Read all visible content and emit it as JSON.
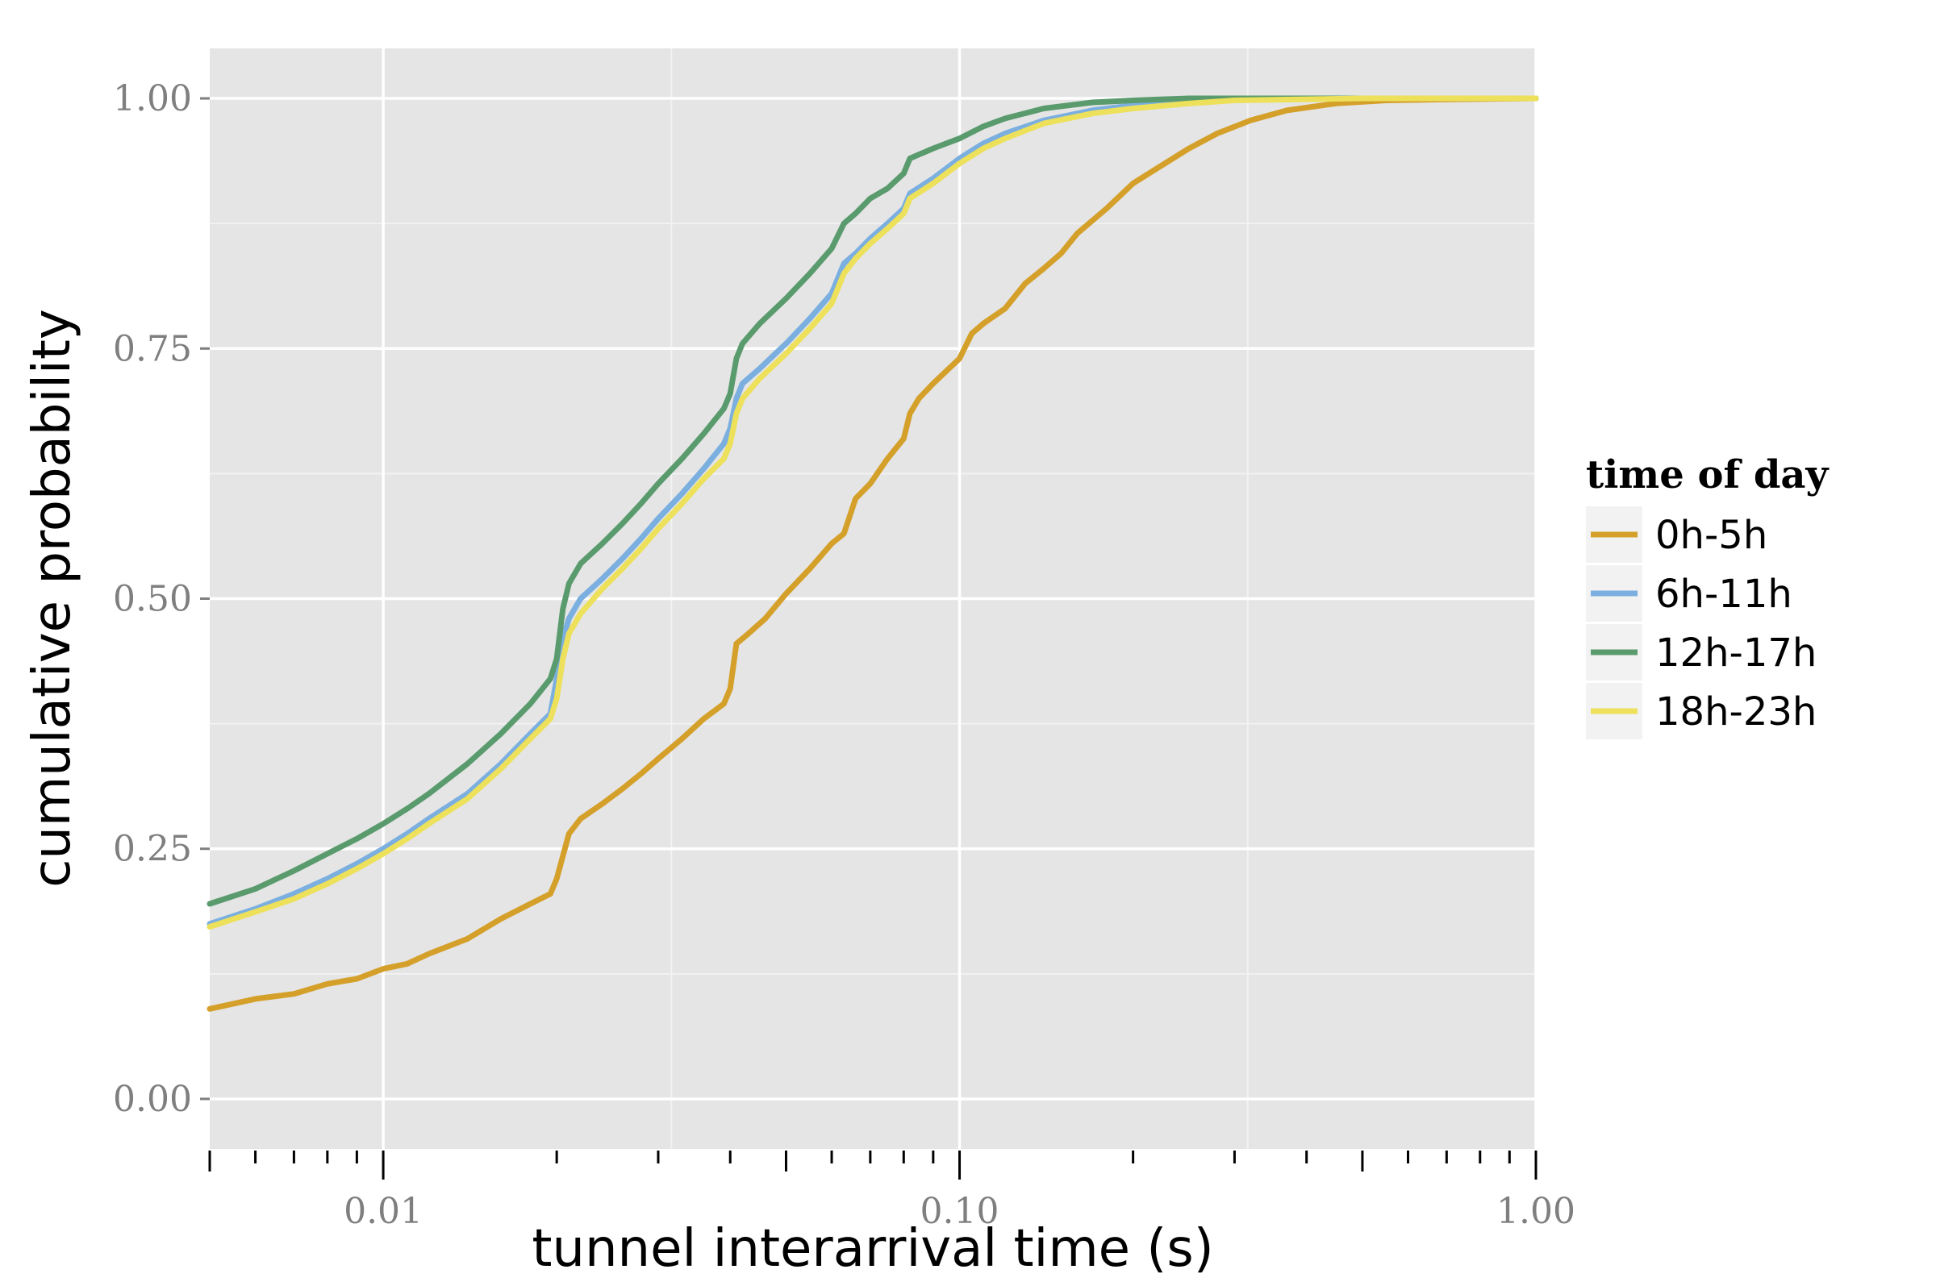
{
  "chart_data": {
    "type": "line",
    "xlabel": "tunnel interarrival time (s)",
    "ylabel": "cumulative probability",
    "xscale": "log10",
    "xlim": [
      0.005,
      1.0
    ],
    "ylim": [
      -0.05,
      1.05
    ],
    "x_ticks": [
      {
        "value": 0.01,
        "label": "0.01"
      },
      {
        "value": 0.1,
        "label": "0.10"
      },
      {
        "value": 1.0,
        "label": "1.00"
      }
    ],
    "y_ticks": [
      {
        "value": 0.0,
        "label": "0.00"
      },
      {
        "value": 0.25,
        "label": "0.25"
      },
      {
        "value": 0.5,
        "label": "0.50"
      },
      {
        "value": 0.75,
        "label": "0.75"
      },
      {
        "value": 1.0,
        "label": "1.00"
      }
    ],
    "grid": true,
    "panel_background": "#e5e5e5",
    "grid_color": "#ffffff",
    "legend": {
      "title": "time of day",
      "placement": "right"
    },
    "series": [
      {
        "name": "0h-5h",
        "color": "#d4a02a",
        "points": [
          [
            0.005,
            0.09
          ],
          [
            0.006,
            0.1
          ],
          [
            0.007,
            0.105
          ],
          [
            0.008,
            0.115
          ],
          [
            0.009,
            0.12
          ],
          [
            0.01,
            0.13
          ],
          [
            0.011,
            0.135
          ],
          [
            0.012,
            0.145
          ],
          [
            0.014,
            0.16
          ],
          [
            0.016,
            0.18
          ],
          [
            0.018,
            0.195
          ],
          [
            0.0195,
            0.205
          ],
          [
            0.02,
            0.22
          ],
          [
            0.021,
            0.265
          ],
          [
            0.022,
            0.28
          ],
          [
            0.024,
            0.295
          ],
          [
            0.026,
            0.31
          ],
          [
            0.028,
            0.325
          ],
          [
            0.03,
            0.34
          ],
          [
            0.033,
            0.36
          ],
          [
            0.036,
            0.38
          ],
          [
            0.039,
            0.395
          ],
          [
            0.04,
            0.41
          ],
          [
            0.041,
            0.455
          ],
          [
            0.043,
            0.465
          ],
          [
            0.046,
            0.48
          ],
          [
            0.05,
            0.505
          ],
          [
            0.055,
            0.53
          ],
          [
            0.06,
            0.555
          ],
          [
            0.063,
            0.565
          ],
          [
            0.066,
            0.6
          ],
          [
            0.07,
            0.615
          ],
          [
            0.075,
            0.64
          ],
          [
            0.08,
            0.66
          ],
          [
            0.082,
            0.685
          ],
          [
            0.085,
            0.7
          ],
          [
            0.09,
            0.715
          ],
          [
            0.1,
            0.74
          ],
          [
            0.105,
            0.765
          ],
          [
            0.11,
            0.775
          ],
          [
            0.12,
            0.79
          ],
          [
            0.13,
            0.815
          ],
          [
            0.14,
            0.83
          ],
          [
            0.15,
            0.845
          ],
          [
            0.16,
            0.865
          ],
          [
            0.18,
            0.89
          ],
          [
            0.2,
            0.915
          ],
          [
            0.22,
            0.93
          ],
          [
            0.25,
            0.95
          ],
          [
            0.28,
            0.965
          ],
          [
            0.32,
            0.978
          ],
          [
            0.37,
            0.988
          ],
          [
            0.45,
            0.995
          ],
          [
            0.55,
            0.998
          ],
          [
            0.7,
            0.999
          ],
          [
            1.0,
            1.0
          ]
        ]
      },
      {
        "name": "6h-11h",
        "color": "#7aafe0",
        "points": [
          [
            0.005,
            0.175
          ],
          [
            0.006,
            0.19
          ],
          [
            0.007,
            0.205
          ],
          [
            0.008,
            0.22
          ],
          [
            0.009,
            0.235
          ],
          [
            0.01,
            0.25
          ],
          [
            0.011,
            0.265
          ],
          [
            0.012,
            0.28
          ],
          [
            0.014,
            0.305
          ],
          [
            0.016,
            0.335
          ],
          [
            0.018,
            0.365
          ],
          [
            0.0195,
            0.385
          ],
          [
            0.02,
            0.42
          ],
          [
            0.0205,
            0.46
          ],
          [
            0.021,
            0.48
          ],
          [
            0.022,
            0.5
          ],
          [
            0.024,
            0.52
          ],
          [
            0.026,
            0.54
          ],
          [
            0.028,
            0.56
          ],
          [
            0.03,
            0.58
          ],
          [
            0.033,
            0.605
          ],
          [
            0.036,
            0.63
          ],
          [
            0.039,
            0.655
          ],
          [
            0.04,
            0.67
          ],
          [
            0.041,
            0.7
          ],
          [
            0.042,
            0.715
          ],
          [
            0.045,
            0.73
          ],
          [
            0.05,
            0.755
          ],
          [
            0.055,
            0.78
          ],
          [
            0.06,
            0.805
          ],
          [
            0.063,
            0.835
          ],
          [
            0.066,
            0.845
          ],
          [
            0.07,
            0.86
          ],
          [
            0.075,
            0.875
          ],
          [
            0.08,
            0.89
          ],
          [
            0.082,
            0.905
          ],
          [
            0.09,
            0.92
          ],
          [
            0.1,
            0.94
          ],
          [
            0.11,
            0.955
          ],
          [
            0.12,
            0.965
          ],
          [
            0.14,
            0.978
          ],
          [
            0.17,
            0.988
          ],
          [
            0.2,
            0.993
          ],
          [
            0.25,
            0.997
          ],
          [
            0.3,
            0.999
          ],
          [
            0.5,
            1.0
          ],
          [
            1.0,
            1.0
          ]
        ]
      },
      {
        "name": "12h-17h",
        "color": "#5a9b6e",
        "points": [
          [
            0.005,
            0.195
          ],
          [
            0.006,
            0.21
          ],
          [
            0.007,
            0.228
          ],
          [
            0.008,
            0.245
          ],
          [
            0.009,
            0.26
          ],
          [
            0.01,
            0.275
          ],
          [
            0.011,
            0.29
          ],
          [
            0.012,
            0.305
          ],
          [
            0.014,
            0.335
          ],
          [
            0.016,
            0.365
          ],
          [
            0.018,
            0.395
          ],
          [
            0.0195,
            0.42
          ],
          [
            0.02,
            0.44
          ],
          [
            0.0205,
            0.49
          ],
          [
            0.021,
            0.515
          ],
          [
            0.022,
            0.535
          ],
          [
            0.024,
            0.555
          ],
          [
            0.026,
            0.575
          ],
          [
            0.028,
            0.595
          ],
          [
            0.03,
            0.615
          ],
          [
            0.033,
            0.64
          ],
          [
            0.036,
            0.665
          ],
          [
            0.039,
            0.69
          ],
          [
            0.04,
            0.705
          ],
          [
            0.041,
            0.74
          ],
          [
            0.042,
            0.755
          ],
          [
            0.045,
            0.775
          ],
          [
            0.05,
            0.8
          ],
          [
            0.055,
            0.825
          ],
          [
            0.06,
            0.85
          ],
          [
            0.063,
            0.875
          ],
          [
            0.066,
            0.885
          ],
          [
            0.07,
            0.9
          ],
          [
            0.075,
            0.91
          ],
          [
            0.08,
            0.925
          ],
          [
            0.082,
            0.94
          ],
          [
            0.09,
            0.95
          ],
          [
            0.1,
            0.96
          ],
          [
            0.11,
            0.972
          ],
          [
            0.12,
            0.98
          ],
          [
            0.14,
            0.99
          ],
          [
            0.17,
            0.996
          ],
          [
            0.2,
            0.998
          ],
          [
            0.25,
            1.0
          ],
          [
            1.0,
            1.0
          ]
        ]
      },
      {
        "name": "18h-23h",
        "color": "#ede05a",
        "points": [
          [
            0.005,
            0.172
          ],
          [
            0.006,
            0.187
          ],
          [
            0.007,
            0.2
          ],
          [
            0.008,
            0.215
          ],
          [
            0.009,
            0.23
          ],
          [
            0.01,
            0.245
          ],
          [
            0.011,
            0.26
          ],
          [
            0.012,
            0.275
          ],
          [
            0.014,
            0.3
          ],
          [
            0.016,
            0.33
          ],
          [
            0.018,
            0.36
          ],
          [
            0.0195,
            0.38
          ],
          [
            0.02,
            0.4
          ],
          [
            0.0205,
            0.44
          ],
          [
            0.021,
            0.465
          ],
          [
            0.022,
            0.485
          ],
          [
            0.024,
            0.51
          ],
          [
            0.026,
            0.53
          ],
          [
            0.028,
            0.55
          ],
          [
            0.03,
            0.57
          ],
          [
            0.033,
            0.595
          ],
          [
            0.036,
            0.62
          ],
          [
            0.039,
            0.64
          ],
          [
            0.04,
            0.655
          ],
          [
            0.041,
            0.685
          ],
          [
            0.042,
            0.7
          ],
          [
            0.045,
            0.72
          ],
          [
            0.05,
            0.745
          ],
          [
            0.055,
            0.77
          ],
          [
            0.06,
            0.795
          ],
          [
            0.063,
            0.825
          ],
          [
            0.066,
            0.84
          ],
          [
            0.07,
            0.855
          ],
          [
            0.075,
            0.87
          ],
          [
            0.08,
            0.885
          ],
          [
            0.082,
            0.9
          ],
          [
            0.09,
            0.915
          ],
          [
            0.1,
            0.935
          ],
          [
            0.11,
            0.95
          ],
          [
            0.12,
            0.96
          ],
          [
            0.14,
            0.975
          ],
          [
            0.17,
            0.985
          ],
          [
            0.2,
            0.99
          ],
          [
            0.25,
            0.995
          ],
          [
            0.3,
            0.998
          ],
          [
            0.5,
            1.0
          ],
          [
            1.0,
            1.0
          ]
        ]
      }
    ]
  }
}
